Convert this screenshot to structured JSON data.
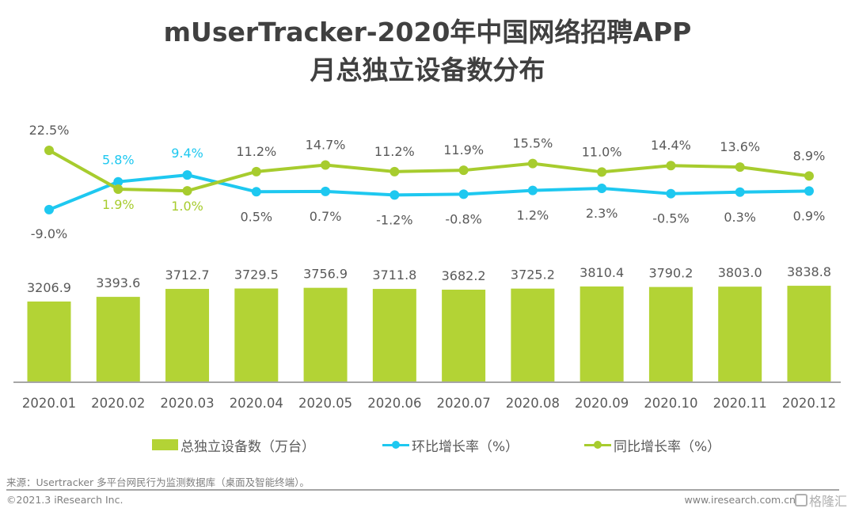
{
  "header": {
    "title_line1": "mUserTracker-2020年中国网络招聘APP",
    "title_line2": "月总独立设备数分布"
  },
  "colors": {
    "bar": "#b3d335",
    "mom_line": "#1ec8f0",
    "yoy_line": "#a7cc2e",
    "axis": "#a6a6a6",
    "label_text": "#595959"
  },
  "chart_data": {
    "type": "bar",
    "title": "mUserTracker-2020年中国网络招聘APP月总独立设备数分布",
    "xlabel": "",
    "ylabel": "",
    "categories": [
      "2020.01",
      "2020.02",
      "2020.03",
      "2020.04",
      "2020.05",
      "2020.06",
      "2020.07",
      "2020.08",
      "2020.09",
      "2020.10",
      "2020.11",
      "2020.12"
    ],
    "series": [
      {
        "name": "总独立设备数（万台）",
        "type": "bar",
        "values": [
          3206.9,
          3393.6,
          3712.7,
          3729.5,
          3756.9,
          3711.8,
          3682.2,
          3725.2,
          3810.4,
          3790.2,
          3803.0,
          3838.8
        ],
        "labels": [
          "3206.9",
          "3393.6",
          "3712.7",
          "3729.5",
          "3756.9",
          "3711.8",
          "3682.2",
          "3725.2",
          "3810.4",
          "3790.2",
          "3803.0",
          "3838.8"
        ]
      },
      {
        "name": "环比增长率（%）",
        "type": "line",
        "values": [
          -9.0,
          5.8,
          9.4,
          0.5,
          0.7,
          -1.2,
          -0.8,
          1.2,
          2.3,
          -0.5,
          0.3,
          0.9
        ],
        "labels": [
          "-9.0%",
          "5.8%",
          "9.4%",
          "0.5%",
          "0.7%",
          "-1.2%",
          "-0.8%",
          "1.2%",
          "2.3%",
          "-0.5%",
          "0.3%",
          "0.9%"
        ]
      },
      {
        "name": "同比增长率（%）",
        "type": "line",
        "values": [
          22.5,
          1.9,
          1.0,
          11.2,
          14.7,
          11.2,
          11.9,
          15.5,
          11.0,
          14.4,
          13.6,
          8.9
        ],
        "labels": [
          "22.5%",
          "1.9%",
          "1.0%",
          "11.2%",
          "14.7%",
          "11.2%",
          "11.9%",
          "15.5%",
          "11.0%",
          "14.4%",
          "13.6%",
          "8.9%"
        ]
      }
    ],
    "ylim_bar": [
      0,
      3838.8
    ],
    "grid": false,
    "legend": "bottom"
  },
  "legend": {
    "bar_label": "总独立设备数（万台）",
    "mom_label": "环比增长率（%）",
    "yoy_label": "同比增长率（%）"
  },
  "footer": {
    "source": "来源：Usertracker 多平台网民行为监测数据库（桌面及智能终端）。",
    "copyright": "©2021.3 iResearch Inc.",
    "website": "www.iresearch.com.cn",
    "watermark": "格隆汇"
  }
}
